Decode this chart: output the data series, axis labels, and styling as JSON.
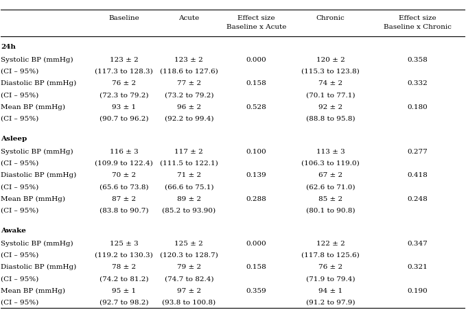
{
  "col_headers": [
    [
      "",
      "Baseline",
      "Acute",
      "Effect size\nBaseline x Acute",
      "Chronic",
      "Effect size\nBaseline x Chronic"
    ],
    [
      "",
      "",
      "",
      "",
      "",
      ""
    ]
  ],
  "rows": [
    {
      "label": "24h",
      "bold": true,
      "type": "section"
    },
    {
      "label": "Systolic BP (mmHg)",
      "bold": false,
      "type": "data",
      "baseline": "123 ± 2",
      "acute": "123 ± 2",
      "es_ba": "0.000",
      "chronic": "120 ± 2",
      "es_bc": "0.358"
    },
    {
      "label": "(CI – 95%)",
      "bold": false,
      "type": "ci",
      "baseline": "(117.3 to 128.3)",
      "acute": "(118.6 to 127.6)",
      "es_ba": "",
      "chronic": "(115.3 to 123.8)",
      "es_bc": ""
    },
    {
      "label": "Diastolic BP (mmHg)",
      "bold": false,
      "type": "data",
      "baseline": "76 ± 2",
      "acute": "77 ± 2",
      "es_ba": "0.158",
      "chronic": "74 ± 2",
      "es_bc": "0.332"
    },
    {
      "label": "(CI – 95%)",
      "bold": false,
      "type": "ci",
      "baseline": "(72.3 to 79.2)",
      "acute": "(73.2 to 79.2)",
      "es_ba": "",
      "chronic": "(70.1 to 77.1)",
      "es_bc": ""
    },
    {
      "label": "Mean BP (mmHg)",
      "bold": false,
      "type": "data",
      "baseline": "93 ± 1",
      "acute": "96 ± 2",
      "es_ba": "0.528",
      "chronic": "92 ± 2",
      "es_bc": "0.180"
    },
    {
      "label": "(CI – 95%)",
      "bold": false,
      "type": "ci",
      "baseline": "(90.7 to 96.2)",
      "acute": "(92.2 to 99.4)",
      "es_ba": "",
      "chronic": "(88.8 to 95.8)",
      "es_bc": ""
    },
    {
      "label": "",
      "bold": false,
      "type": "spacer"
    },
    {
      "label": "Asleep",
      "bold": true,
      "type": "section"
    },
    {
      "label": "Systolic BP (mmHg)",
      "bold": false,
      "type": "data",
      "baseline": "116 ± 3",
      "acute": "117 ± 2",
      "es_ba": "0.100",
      "chronic": "113 ± 3",
      "es_bc": "0.277"
    },
    {
      "label": "(CI – 95%)",
      "bold": false,
      "type": "ci",
      "baseline": "(109.9 to 122.4)",
      "acute": "(111.5 to 122.1)",
      "es_ba": "",
      "chronic": "(106.3 to 119.0)",
      "es_bc": ""
    },
    {
      "label": "Diastolic BP (mmHg)",
      "bold": false,
      "type": "data",
      "baseline": "70 ± 2",
      "acute": "71 ± 2",
      "es_ba": "0.139",
      "chronic": "67 ± 2",
      "es_bc": "0.418"
    },
    {
      "label": "(CI – 95%)",
      "bold": false,
      "type": "ci",
      "baseline": "(65.6 to 73.8)",
      "acute": "(66.6 to 75.1)",
      "es_ba": "",
      "chronic": "(62.6 to 71.0)",
      "es_bc": ""
    },
    {
      "label": "Mean BP (mmHg)",
      "bold": false,
      "type": "data",
      "baseline": "87 ± 2",
      "acute": "89 ± 2",
      "es_ba": "0.288",
      "chronic": "85 ± 2",
      "es_bc": "0.248"
    },
    {
      "label": "(CI – 95%)",
      "bold": false,
      "type": "ci",
      "baseline": "(83.8 to 90.7)",
      "acute": "(85.2 to 93.90)",
      "es_ba": "",
      "chronic": "(80.1 to 90.8)",
      "es_bc": ""
    },
    {
      "label": "",
      "bold": false,
      "type": "spacer"
    },
    {
      "label": "Awake",
      "bold": true,
      "type": "section"
    },
    {
      "label": "Systolic BP (mmHg)",
      "bold": false,
      "type": "data",
      "baseline": "125 ± 3",
      "acute": "125 ± 2",
      "es_ba": "0.000",
      "chronic": "122 ± 2",
      "es_bc": "0.347"
    },
    {
      "label": "(CI – 95%)",
      "bold": false,
      "type": "ci",
      "baseline": "(119.2 to 130.3)",
      "acute": "(120.3 to 128.7)",
      "es_ba": "",
      "chronic": "(117.8 to 125.6)",
      "es_bc": ""
    },
    {
      "label": "Diastolic BP (mmHg)",
      "bold": false,
      "type": "data",
      "baseline": "78 ± 2",
      "acute": "79 ± 2",
      "es_ba": "0.158",
      "chronic": "76 ± 2",
      "es_bc": "0.321"
    },
    {
      "label": "(CI – 95%)",
      "bold": false,
      "type": "ci",
      "baseline": "(74.2 to 81.2)",
      "acute": "(74.7 to 82.4)",
      "es_ba": "",
      "chronic": "(71.9 to 79.4)",
      "es_bc": ""
    },
    {
      "label": "Mean BP (mmHg)",
      "bold": false,
      "type": "data",
      "baseline": "95 ± 1",
      "acute": "97 ± 2",
      "es_ba": "0.359",
      "chronic": "94 ± 1",
      "es_bc": "0.190"
    },
    {
      "label": "(CI – 95%)",
      "bold": false,
      "type": "ci",
      "baseline": "(92.7 to 98.2)",
      "acute": "(93.8 to 100.8)",
      "es_ba": "",
      "chronic": "(91.2 to 97.9)",
      "es_bc": ""
    }
  ],
  "bg_color": "#ffffff",
  "text_color": "#000000",
  "font_size": 7.5,
  "header_font_size": 7.5
}
